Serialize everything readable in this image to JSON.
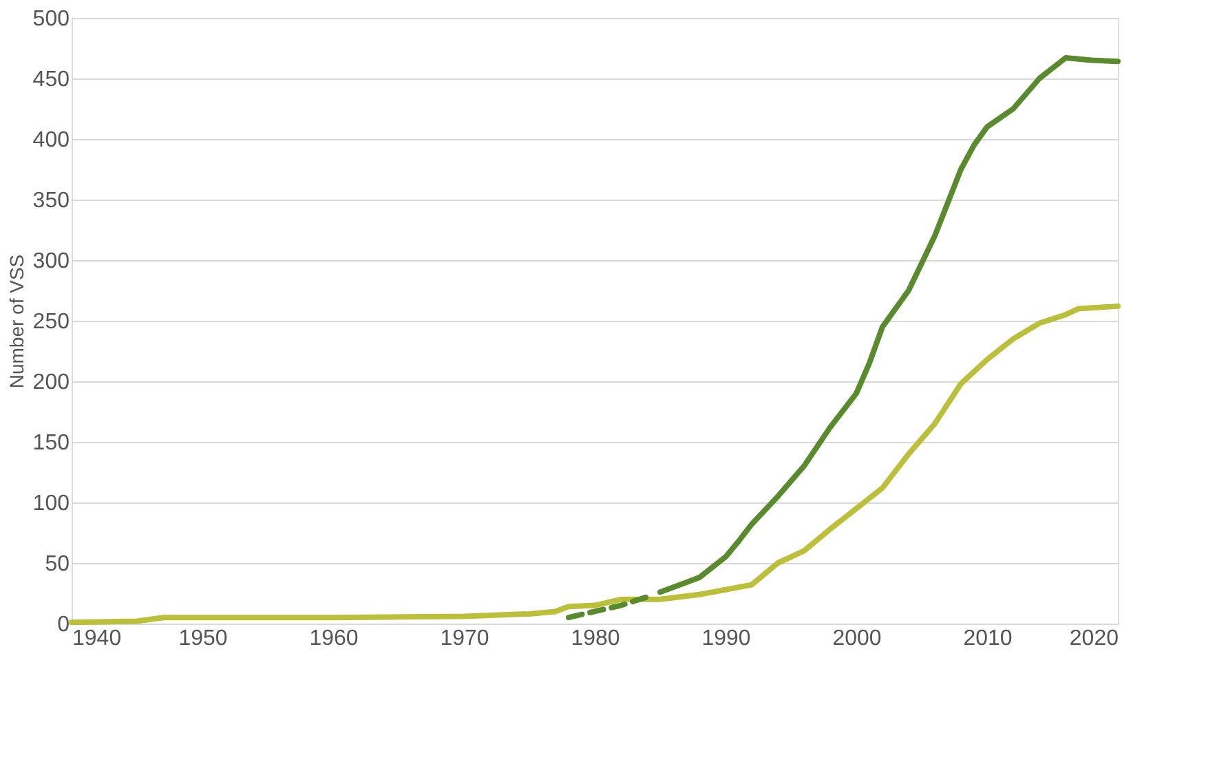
{
  "chart_data": {
    "type": "line",
    "ylabel": "Number of VSS",
    "xlim": [
      1940,
      2020
    ],
    "xticks": [
      1940,
      1950,
      1960,
      1970,
      1980,
      1990,
      2000,
      2010,
      2020
    ],
    "ylim": [
      0,
      500
    ],
    "yticks": [
      0,
      50,
      100,
      150,
      200,
      250,
      300,
      350,
      400,
      450,
      500
    ],
    "grid": "y",
    "marker": "none",
    "series": [
      {
        "color": "#bcbf3c",
        "line_style": "solid",
        "x": [
          1940,
          1945,
          1947,
          1960,
          1970,
          1975,
          1977,
          1978,
          1980,
          1982,
          1985,
          1988,
          1990,
          1992,
          1994,
          1996,
          1998,
          2000,
          2002,
          2004,
          2006,
          2008,
          2010,
          2012,
          2014,
          2016,
          2017,
          2020
        ],
        "values": [
          1,
          2,
          5,
          5,
          6,
          8,
          10,
          14,
          15,
          20,
          20,
          24,
          28,
          32,
          50,
          60,
          78,
          95,
          112,
          140,
          165,
          198,
          218,
          235,
          248,
          255,
          260,
          262
        ]
      },
      {
        "color": "#5a8a2e",
        "line_style": "dashed",
        "x": [
          1978,
          1980,
          1982,
          1984
        ],
        "values": [
          5,
          10,
          15,
          22
        ]
      },
      {
        "color": "#5a8a2e",
        "line_style": "solid",
        "x": [
          1985,
          1986,
          1988,
          1990,
          1991,
          1992,
          1994,
          1996,
          1998,
          2000,
          2001,
          2002,
          2004,
          2006,
          2008,
          2009,
          2010,
          2012,
          2014,
          2016,
          2018,
          2020
        ],
        "values": [
          26,
          30,
          38,
          55,
          68,
          82,
          105,
          130,
          162,
          190,
          215,
          245,
          275,
          320,
          375,
          395,
          410,
          425,
          450,
          467,
          465,
          464
        ]
      }
    ]
  }
}
